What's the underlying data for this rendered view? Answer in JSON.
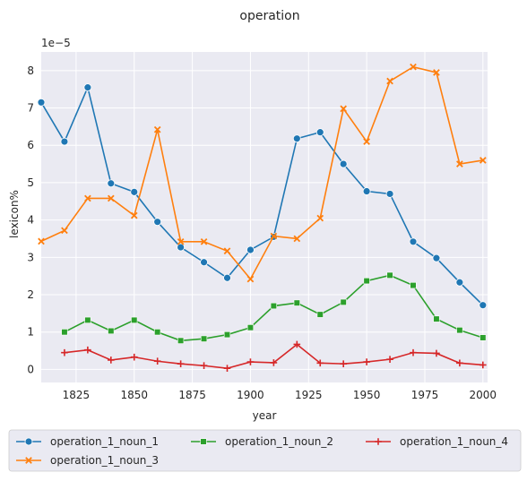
{
  "chart_data": {
    "type": "line",
    "title": "operation",
    "xlabel": "year",
    "ylabel": "lexicon%",
    "y_offset_label": "1e−5",
    "xlim": [
      1810,
      2002
    ],
    "ylim": [
      -0.35,
      8.5
    ],
    "xticks": [
      1825,
      1850,
      1875,
      1900,
      1925,
      1950,
      1975,
      2000
    ],
    "yticks": [
      0,
      1,
      2,
      3,
      4,
      5,
      6,
      7,
      8
    ],
    "grid": true,
    "legend_position": "bottom",
    "series": [
      {
        "name": "operation_1_noun_1",
        "color": "#1f77b4",
        "marker": "circle",
        "x": [
          1810,
          1820,
          1830,
          1840,
          1850,
          1860,
          1870,
          1880,
          1890,
          1900,
          1910,
          1920,
          1930,
          1940,
          1950,
          1960,
          1970,
          1980,
          1990,
          2000
        ],
        "y": [
          7.15,
          6.1,
          7.55,
          4.98,
          4.75,
          3.95,
          3.27,
          2.87,
          2.45,
          3.2,
          3.55,
          6.18,
          6.35,
          5.5,
          4.77,
          4.7,
          3.42,
          2.98,
          2.33,
          1.72
        ]
      },
      {
        "name": "operation_1_noun_3",
        "color": "#ff7f0e",
        "marker": "x",
        "x": [
          1810,
          1820,
          1830,
          1840,
          1850,
          1860,
          1870,
          1880,
          1890,
          1900,
          1910,
          1920,
          1930,
          1940,
          1950,
          1960,
          1970,
          1980,
          1990,
          2000
        ],
        "y": [
          3.43,
          3.72,
          4.58,
          4.58,
          4.12,
          6.42,
          3.42,
          3.42,
          3.17,
          2.42,
          3.57,
          3.5,
          4.05,
          6.98,
          6.1,
          7.72,
          8.1,
          7.95,
          5.5,
          5.6
        ]
      },
      {
        "name": "operation_1_noun_2",
        "color": "#2ca02c",
        "marker": "square",
        "x": [
          1820,
          1830,
          1840,
          1850,
          1860,
          1870,
          1880,
          1890,
          1900,
          1910,
          1920,
          1930,
          1940,
          1950,
          1960,
          1970,
          1980,
          1990,
          2000
        ],
        "y": [
          1.0,
          1.32,
          1.03,
          1.32,
          1.0,
          0.77,
          0.82,
          0.93,
          1.12,
          1.7,
          1.78,
          1.47,
          1.8,
          2.37,
          2.52,
          2.25,
          1.35,
          1.05,
          0.85
        ]
      },
      {
        "name": "operation_1_noun_4",
        "color": "#d62728",
        "marker": "plus",
        "x": [
          1820,
          1830,
          1840,
          1850,
          1860,
          1870,
          1880,
          1890,
          1900,
          1910,
          1920,
          1930,
          1940,
          1950,
          1960,
          1970,
          1980,
          1990,
          2000
        ],
        "y": [
          0.45,
          0.52,
          0.25,
          0.33,
          0.22,
          0.15,
          0.1,
          0.03,
          0.2,
          0.18,
          0.67,
          0.17,
          0.15,
          0.2,
          0.27,
          0.45,
          0.43,
          0.17,
          0.12
        ]
      }
    ],
    "legend_order": [
      "operation_1_noun_1",
      "operation_1_noun_2",
      "operation_1_noun_4",
      "operation_1_noun_3"
    ]
  }
}
